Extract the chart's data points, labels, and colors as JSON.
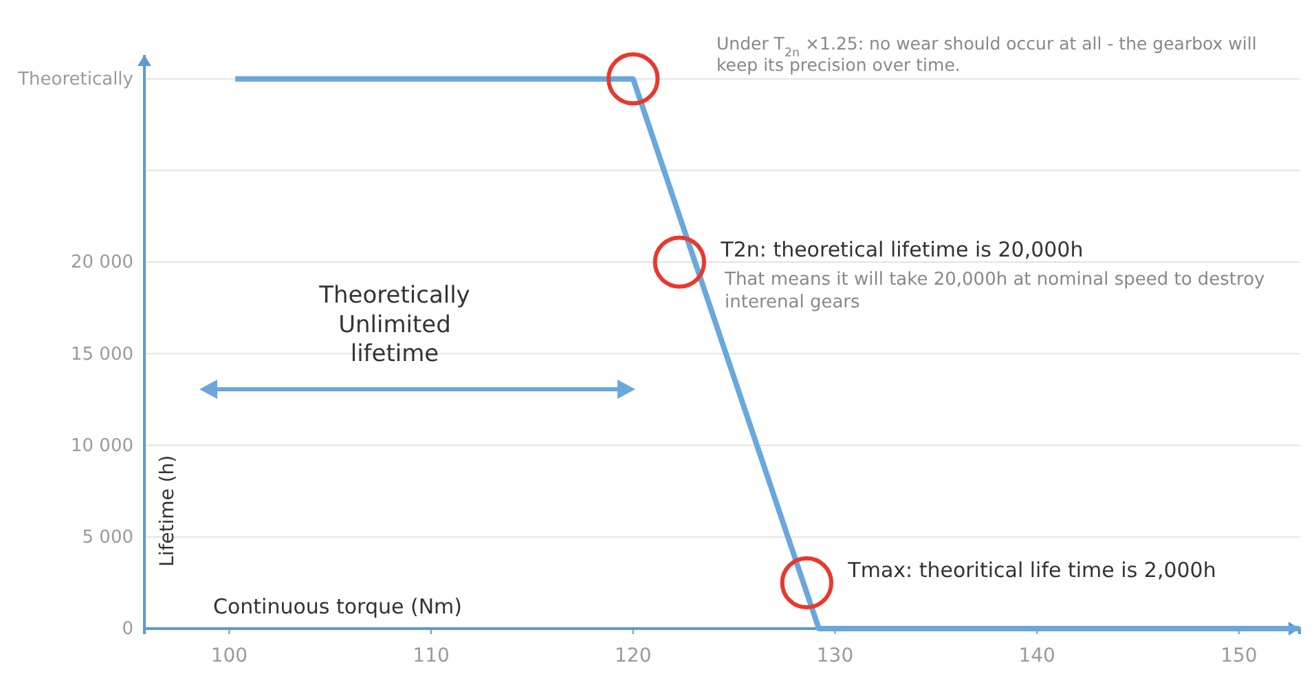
{
  "chart_data": {
    "type": "line",
    "xlabel": "Continuous torque (Nm)",
    "ylabel": "Lifetime (h)",
    "xlim": [
      95.8,
      153
    ],
    "xticks": [
      100,
      110,
      120,
      130,
      140,
      150
    ],
    "ylim": [
      0,
      31300
    ],
    "yticks": [
      0,
      {
        "value": 5000,
        "label": "5 000"
      },
      {
        "value": 10000,
        "label": "10 000"
      },
      {
        "value": 15000,
        "label": "15 000"
      },
      {
        "value": 20000,
        "label": "20 000"
      },
      {
        "value": 25000,
        "label": null
      },
      {
        "value": 30000,
        "label": "Theoretically"
      }
    ],
    "grid": "y",
    "series": [
      {
        "color": "#6aa7dc",
        "x": [
          100.3,
          120,
          129.2,
          153
        ],
        "values": [
          30000,
          30000,
          0,
          0
        ],
        "marker": "none"
      },
      {
        "type": "scatter",
        "color": "#e8392c",
        "x": [
          120,
          122.3,
          128.6
        ],
        "values": [
          30000,
          20000,
          2500
        ],
        "marker": "circle"
      }
    ],
    "annotations": [
      "Under T$_{2n}$ ×1.25: no wear should occur at all - the gearbox will keep its precision over time.",
      {
        "text": "T2n: theoretical lifetime is 20,000h",
        "x": 122.3,
        "y": 20000
      },
      "That means it will take 20,000h at nominal speed to destroy interenal gears",
      {
        "text": "Tmax: theoritical life time is 2,000h",
        "x": 128.6,
        "y": 2500
      },
      "Theoretically Unlimited lifetime"
    ]
  }
}
